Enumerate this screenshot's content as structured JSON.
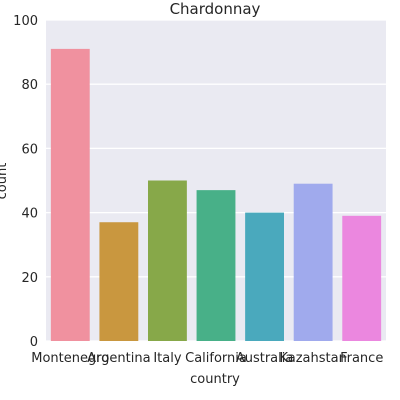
{
  "chart_data": {
    "type": "bar",
    "title": "Chardonnay",
    "xlabel": "country",
    "ylabel": "count",
    "categories": [
      "Montenegro",
      "Argentina",
      "Italy",
      "California",
      "Australia",
      "Kazahstan",
      "France"
    ],
    "values": [
      91,
      37,
      50,
      47,
      40,
      49,
      39
    ],
    "colors": [
      "#f0919f",
      "#c9973f",
      "#87a849",
      "#48b088",
      "#4aa9bd",
      "#a0aaed",
      "#eb87df"
    ],
    "ylim": [
      0,
      100
    ],
    "yticks": [
      0,
      20,
      40,
      60,
      80,
      100
    ],
    "grid": true,
    "background": "#eaeaf2"
  }
}
